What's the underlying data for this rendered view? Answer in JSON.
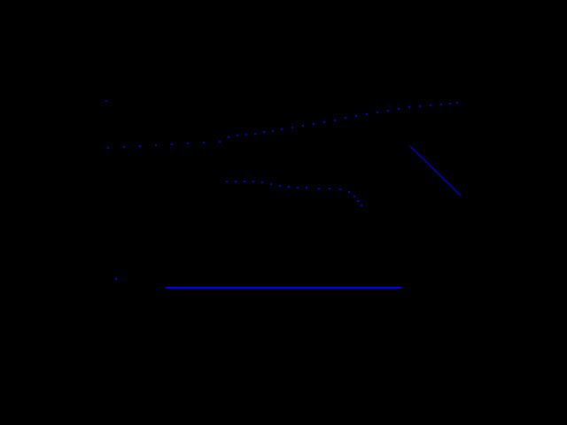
{
  "screen": {
    "background": "#000000",
    "stroke_color": "#0000ff"
  },
  "objects": {
    "upper_dotted_trail": "dotted-line",
    "middle_dotted_trail": "dotted-line",
    "diagonal_segment": "line",
    "horizontal_bar": "line",
    "isolated_dots": "dot"
  }
}
